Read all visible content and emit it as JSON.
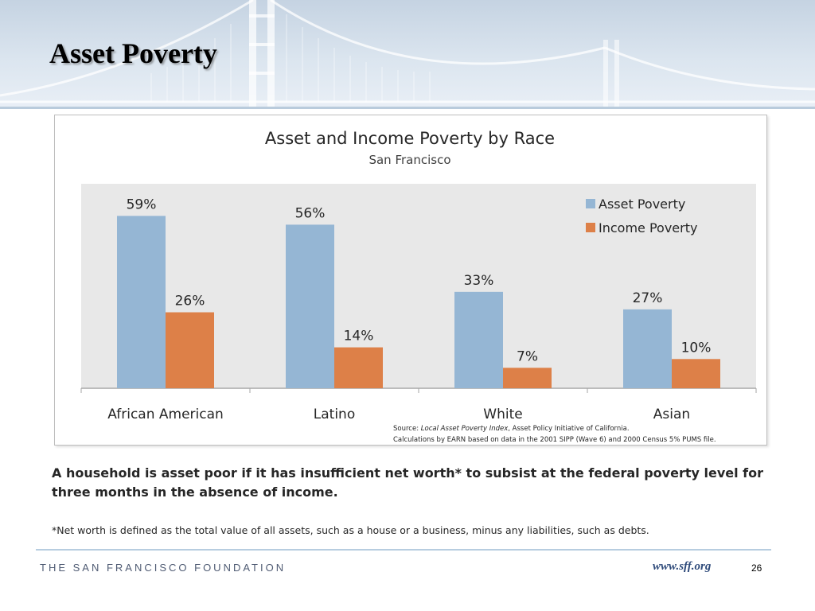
{
  "slide": {
    "title": "Asset Poverty",
    "definition": "A household is asset poor if it has insufficient net worth* to subsist at the federal poverty level for three months in the absence of income.",
    "footnote": "*Net worth is defined as the total value of all assets, such as a house or a business, minus any liabilities, such as debts.",
    "footer": {
      "organization": "THE SAN FRANCISCO FOUNDATION",
      "url": "www.sff.org",
      "page_number": "26"
    }
  },
  "chart_data": {
    "type": "bar",
    "title": "Asset and Income Poverty by Race",
    "subtitle": "San Francisco",
    "categories": [
      "African American",
      "Latino",
      "White",
      "Asian"
    ],
    "series": [
      {
        "name": "Asset Poverty",
        "values": [
          59,
          56,
          33,
          27
        ],
        "labels": [
          "59%",
          "56%",
          "33%",
          "27%"
        ],
        "color": "#95b6d4"
      },
      {
        "name": "Income Poverty",
        "values": [
          26,
          14,
          7,
          10
        ],
        "labels": [
          "26%",
          "14%",
          "7%",
          "10%"
        ],
        "color": "#dd8048"
      }
    ],
    "ylim": [
      0,
      70
    ],
    "legend_position": "top-right",
    "plot_background": "#e8e8e8",
    "source": {
      "prefix": "Source: ",
      "title": "Local Asset Poverty Index",
      "suffix": ", Asset Policy Initiative of California.",
      "calculations": "Calculations by EARN based on data in the 2001 SIPP (Wave 6) and 2000 Census 5% PUMS file."
    }
  }
}
